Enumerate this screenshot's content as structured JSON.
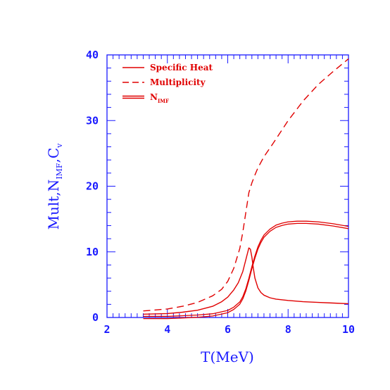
{
  "chart_data": {
    "type": "line",
    "xlabel": "T(MeV)",
    "ylabel_parts": {
      "main": "Mult,N",
      "sub1": "IMF",
      "mid": ",C",
      "sub2": "v"
    },
    "xlim": [
      2,
      10
    ],
    "ylim": [
      0,
      40
    ],
    "x_ticks": [
      "2",
      "4",
      "6",
      "8",
      "10"
    ],
    "y_ticks": [
      "0",
      "10",
      "20",
      "30",
      "40"
    ],
    "grid": false,
    "legend_position": "top-left",
    "legend": [
      {
        "label": "Specific Heat",
        "style": "solid"
      },
      {
        "label": "Multiplicity",
        "style": "dashed"
      },
      {
        "label_main": "N",
        "label_sub": "IMF",
        "style": "double"
      }
    ],
    "series": [
      {
        "name": "Specific Heat",
        "style": "solid",
        "color": "#e00000",
        "x": [
          3.2,
          4.0,
          4.5,
          5.0,
          5.5,
          5.8,
          6.0,
          6.2,
          6.35,
          6.5,
          6.6,
          6.7,
          6.75,
          6.8,
          6.85,
          6.9,
          7.0,
          7.1,
          7.2,
          7.4,
          7.6,
          8.0,
          8.5,
          9.0,
          9.5,
          10.0
        ],
        "y": [
          0.5,
          0.6,
          0.8,
          1.1,
          1.7,
          2.4,
          3.1,
          4.2,
          5.3,
          7.0,
          8.8,
          10.6,
          10.4,
          9.2,
          7.5,
          6.0,
          4.5,
          3.8,
          3.4,
          3.0,
          2.8,
          2.6,
          2.4,
          2.3,
          2.2,
          2.1
        ]
      },
      {
        "name": "Multiplicity",
        "style": "dashed",
        "color": "#e00000",
        "x": [
          3.2,
          3.5,
          4.0,
          4.5,
          5.0,
          5.5,
          5.8,
          6.0,
          6.2,
          6.4,
          6.5,
          6.6,
          6.7,
          6.8,
          6.9,
          7.0,
          7.2,
          7.5,
          8.0,
          8.5,
          9.0,
          9.5,
          10.0
        ],
        "y": [
          1.0,
          1.1,
          1.3,
          1.7,
          2.3,
          3.3,
          4.3,
          5.5,
          7.5,
          10.5,
          13.0,
          16.0,
          19.0,
          20.5,
          21.7,
          22.8,
          24.5,
          26.5,
          30.0,
          33.0,
          35.5,
          37.5,
          39.4
        ]
      },
      {
        "name": "N_IMF",
        "style": "double",
        "color": "#e00000",
        "x": [
          3.2,
          4.0,
          4.5,
          5.0,
          5.5,
          6.0,
          6.2,
          6.4,
          6.5,
          6.6,
          6.7,
          6.8,
          6.9,
          7.0,
          7.1,
          7.2,
          7.4,
          7.6,
          7.8,
          8.0,
          8.3,
          8.6,
          9.0,
          9.5,
          10.0
        ],
        "y": [
          0.0,
          0.0,
          0.1,
          0.2,
          0.4,
          0.9,
          1.4,
          2.2,
          3.0,
          4.2,
          5.8,
          7.6,
          9.2,
          10.6,
          11.6,
          12.4,
          13.3,
          13.9,
          14.2,
          14.4,
          14.5,
          14.5,
          14.4,
          14.1,
          13.7
        ]
      }
    ]
  }
}
